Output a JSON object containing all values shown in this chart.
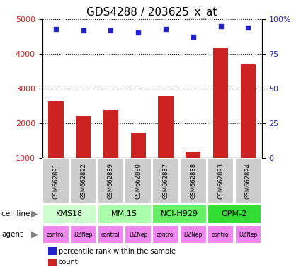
{
  "title": "GDS4288 / 203625_x_at",
  "samples": [
    "GSM662891",
    "GSM662892",
    "GSM662889",
    "GSM662890",
    "GSM662887",
    "GSM662888",
    "GSM662893",
    "GSM662894"
  ],
  "counts": [
    2620,
    2200,
    2380,
    1700,
    2780,
    1170,
    4150,
    3700
  ],
  "percentile_ranks": [
    93,
    92,
    92,
    90,
    93,
    87,
    95,
    94
  ],
  "ylim_left": [
    1000,
    5000
  ],
  "ylim_right": [
    0,
    100
  ],
  "yticks_left": [
    1000,
    2000,
    3000,
    4000,
    5000
  ],
  "yticks_right": [
    0,
    25,
    50,
    75,
    100
  ],
  "bar_color": "#cc2222",
  "dot_color": "#2222cc",
  "cell_line_data": [
    {
      "label": "KMS18",
      "start": 0,
      "end": 1,
      "color": "#ccffcc"
    },
    {
      "label": "MM.1S",
      "start": 2,
      "end": 3,
      "color": "#aaffaa"
    },
    {
      "label": "NCI-H929",
      "start": 4,
      "end": 5,
      "color": "#66ee66"
    },
    {
      "label": "OPM-2",
      "start": 6,
      "end": 7,
      "color": "#33dd33"
    }
  ],
  "agents": [
    "control",
    "DZNep",
    "control",
    "DZNep",
    "control",
    "DZNep",
    "control",
    "DZNep"
  ],
  "agent_color": "#ee88ee",
  "sample_box_color": "#cccccc",
  "title_fontsize": 11
}
